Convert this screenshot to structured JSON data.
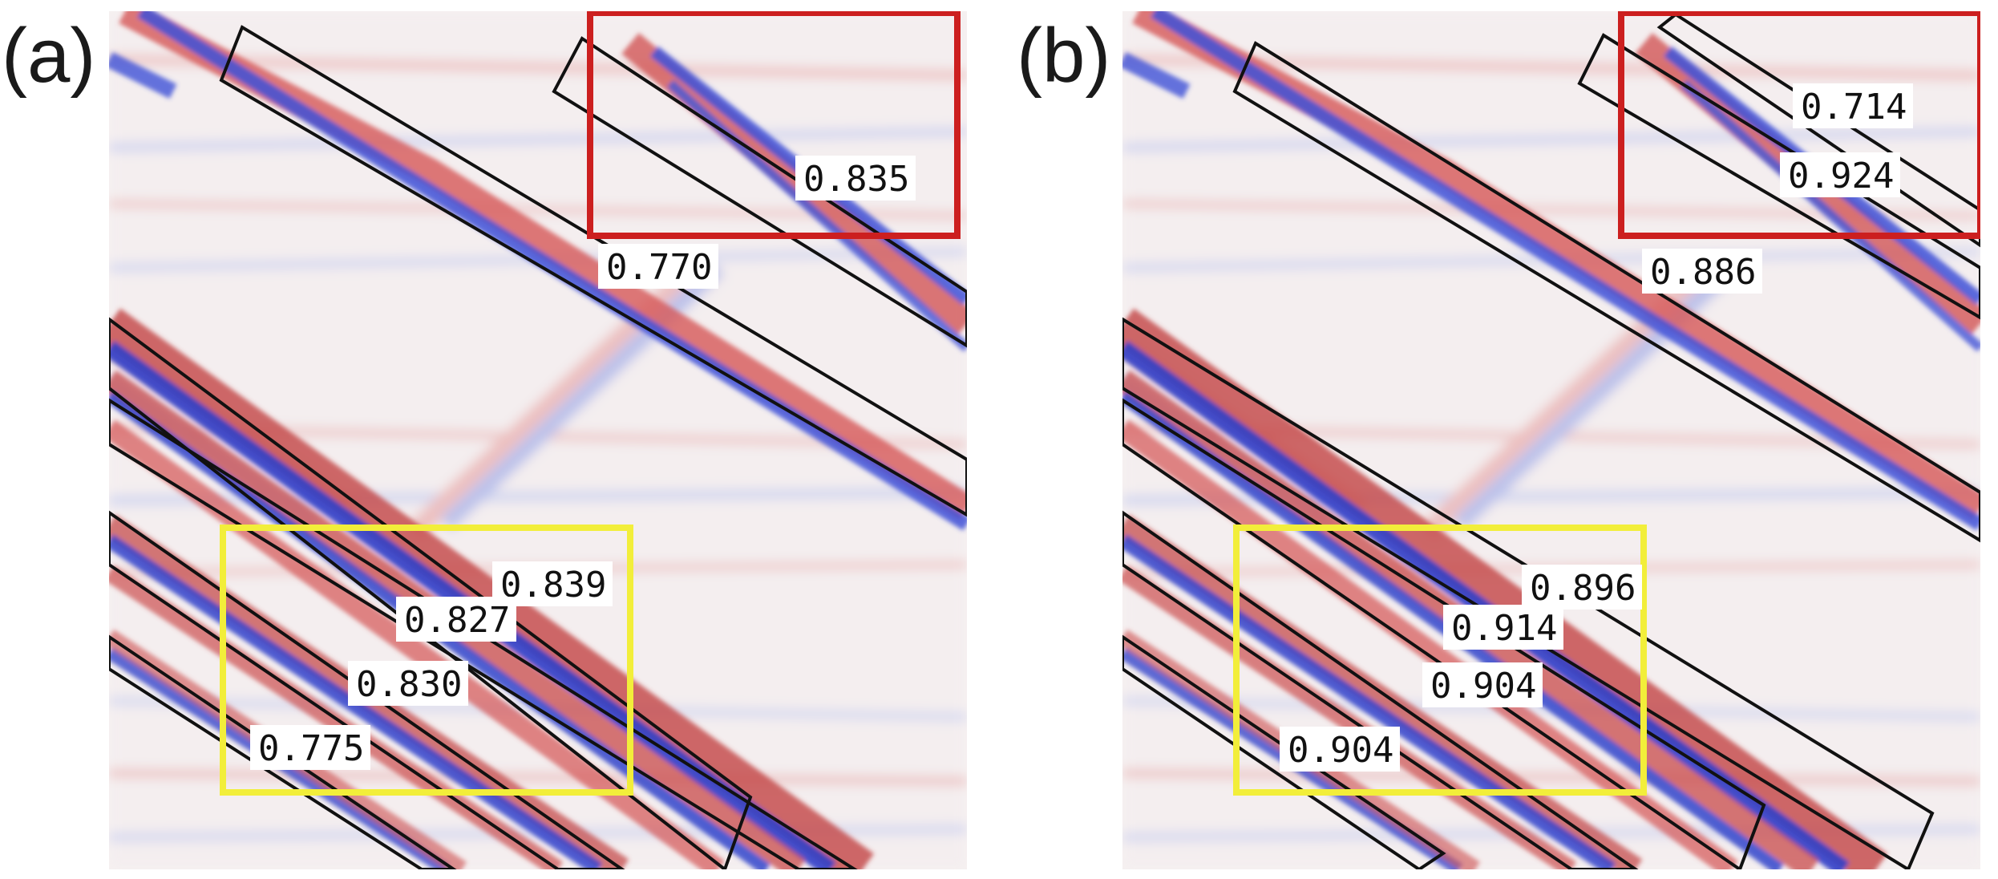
{
  "panels": [
    {
      "label": "(a)",
      "scores": [
        "0.835",
        "0.770",
        "0.839",
        "0.827",
        "0.830",
        "0.775"
      ]
    },
    {
      "label": "(b)",
      "scores": [
        "0.714",
        "0.924",
        "0.886",
        "0.896",
        "0.914",
        "0.904",
        "0.904"
      ]
    }
  ],
  "colors": {
    "positive": "#d83a3a",
    "negative": "#3b4fd6",
    "highlight_red": "#cc1f1f",
    "highlight_yellow": "#f2ee3a",
    "box_outline": "#111111",
    "label_background": "#ffffff"
  }
}
